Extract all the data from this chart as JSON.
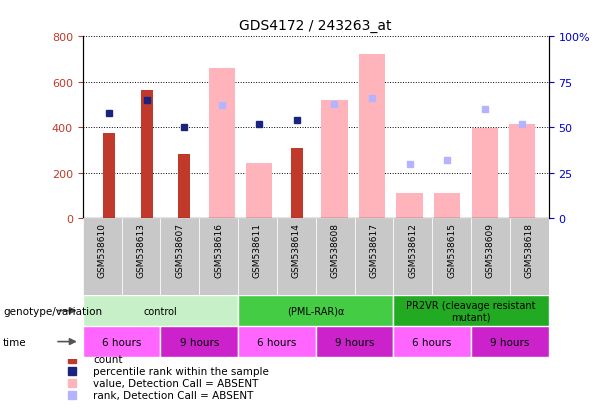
{
  "title": "GDS4172 / 243263_at",
  "samples": [
    "GSM538610",
    "GSM538613",
    "GSM538607",
    "GSM538616",
    "GSM538611",
    "GSM538614",
    "GSM538608",
    "GSM538617",
    "GSM538612",
    "GSM538615",
    "GSM538609",
    "GSM538618"
  ],
  "count_bars": {
    "GSM538610": 375,
    "GSM538613": 565,
    "GSM538607": 285,
    "GSM538614": 310
  },
  "percentile_rank_dots": {
    "GSM538610": 58,
    "GSM538613": 65,
    "GSM538607": 50,
    "GSM538611": 52,
    "GSM538614": 54
  },
  "absent_value_bars": {
    "GSM538616": 660,
    "GSM538611": 245,
    "GSM538608": 520,
    "GSM538617": 720,
    "GSM538612": 110,
    "GSM538615": 110,
    "GSM538609": 395,
    "GSM538618": 415
  },
  "absent_rank_dots": {
    "GSM538616": 62,
    "GSM538608": 63,
    "GSM538617": 66,
    "GSM538612": 30,
    "GSM538615": 32,
    "GSM538609": 60,
    "GSM538618": 52
  },
  "ylim_left": [
    0,
    800
  ],
  "ylim_right": [
    0,
    100
  ],
  "yticks_left": [
    0,
    200,
    400,
    600,
    800
  ],
  "yticks_right": [
    0,
    25,
    50,
    75,
    100
  ],
  "ytick_labels_right": [
    "0",
    "25",
    "50",
    "75",
    "100%"
  ],
  "color_count": "#c0392b",
  "color_percentile": "#1a237e",
  "color_absent_value": "#ffb3ba",
  "color_absent_rank": "#b3b3ff",
  "bar_width": 0.5,
  "geno_data": [
    {
      "label": "control",
      "start": 0,
      "end": 4,
      "color": "#c8f0c8"
    },
    {
      "label": "(PML-RAR)α",
      "start": 4,
      "end": 8,
      "color": "#44cc44"
    },
    {
      "label": "PR2VR (cleavage resistant\nmutant)",
      "start": 8,
      "end": 12,
      "color": "#22aa22"
    }
  ],
  "time_data": [
    {
      "label": "6 hours",
      "start": 0,
      "end": 2,
      "color": "#ff66ff"
    },
    {
      "label": "9 hours",
      "start": 2,
      "end": 4,
      "color": "#cc22cc"
    },
    {
      "label": "6 hours",
      "start": 4,
      "end": 6,
      "color": "#ff66ff"
    },
    {
      "label": "9 hours",
      "start": 6,
      "end": 8,
      "color": "#cc22cc"
    },
    {
      "label": "6 hours",
      "start": 8,
      "end": 10,
      "color": "#ff66ff"
    },
    {
      "label": "9 hours",
      "start": 10,
      "end": 12,
      "color": "#cc22cc"
    }
  ],
  "legend_items": [
    {
      "label": "count",
      "color": "#c0392b"
    },
    {
      "label": "percentile rank within the sample",
      "color": "#1a237e"
    },
    {
      "label": "value, Detection Call = ABSENT",
      "color": "#ffb3ba"
    },
    {
      "label": "rank, Detection Call = ABSENT",
      "color": "#b3b3ff"
    }
  ],
  "left_axis_color": "#c0392b",
  "right_axis_color": "#0000cc",
  "genotype_label": "genotype/variation",
  "time_label": "time",
  "xtick_bg_color": "#cccccc"
}
